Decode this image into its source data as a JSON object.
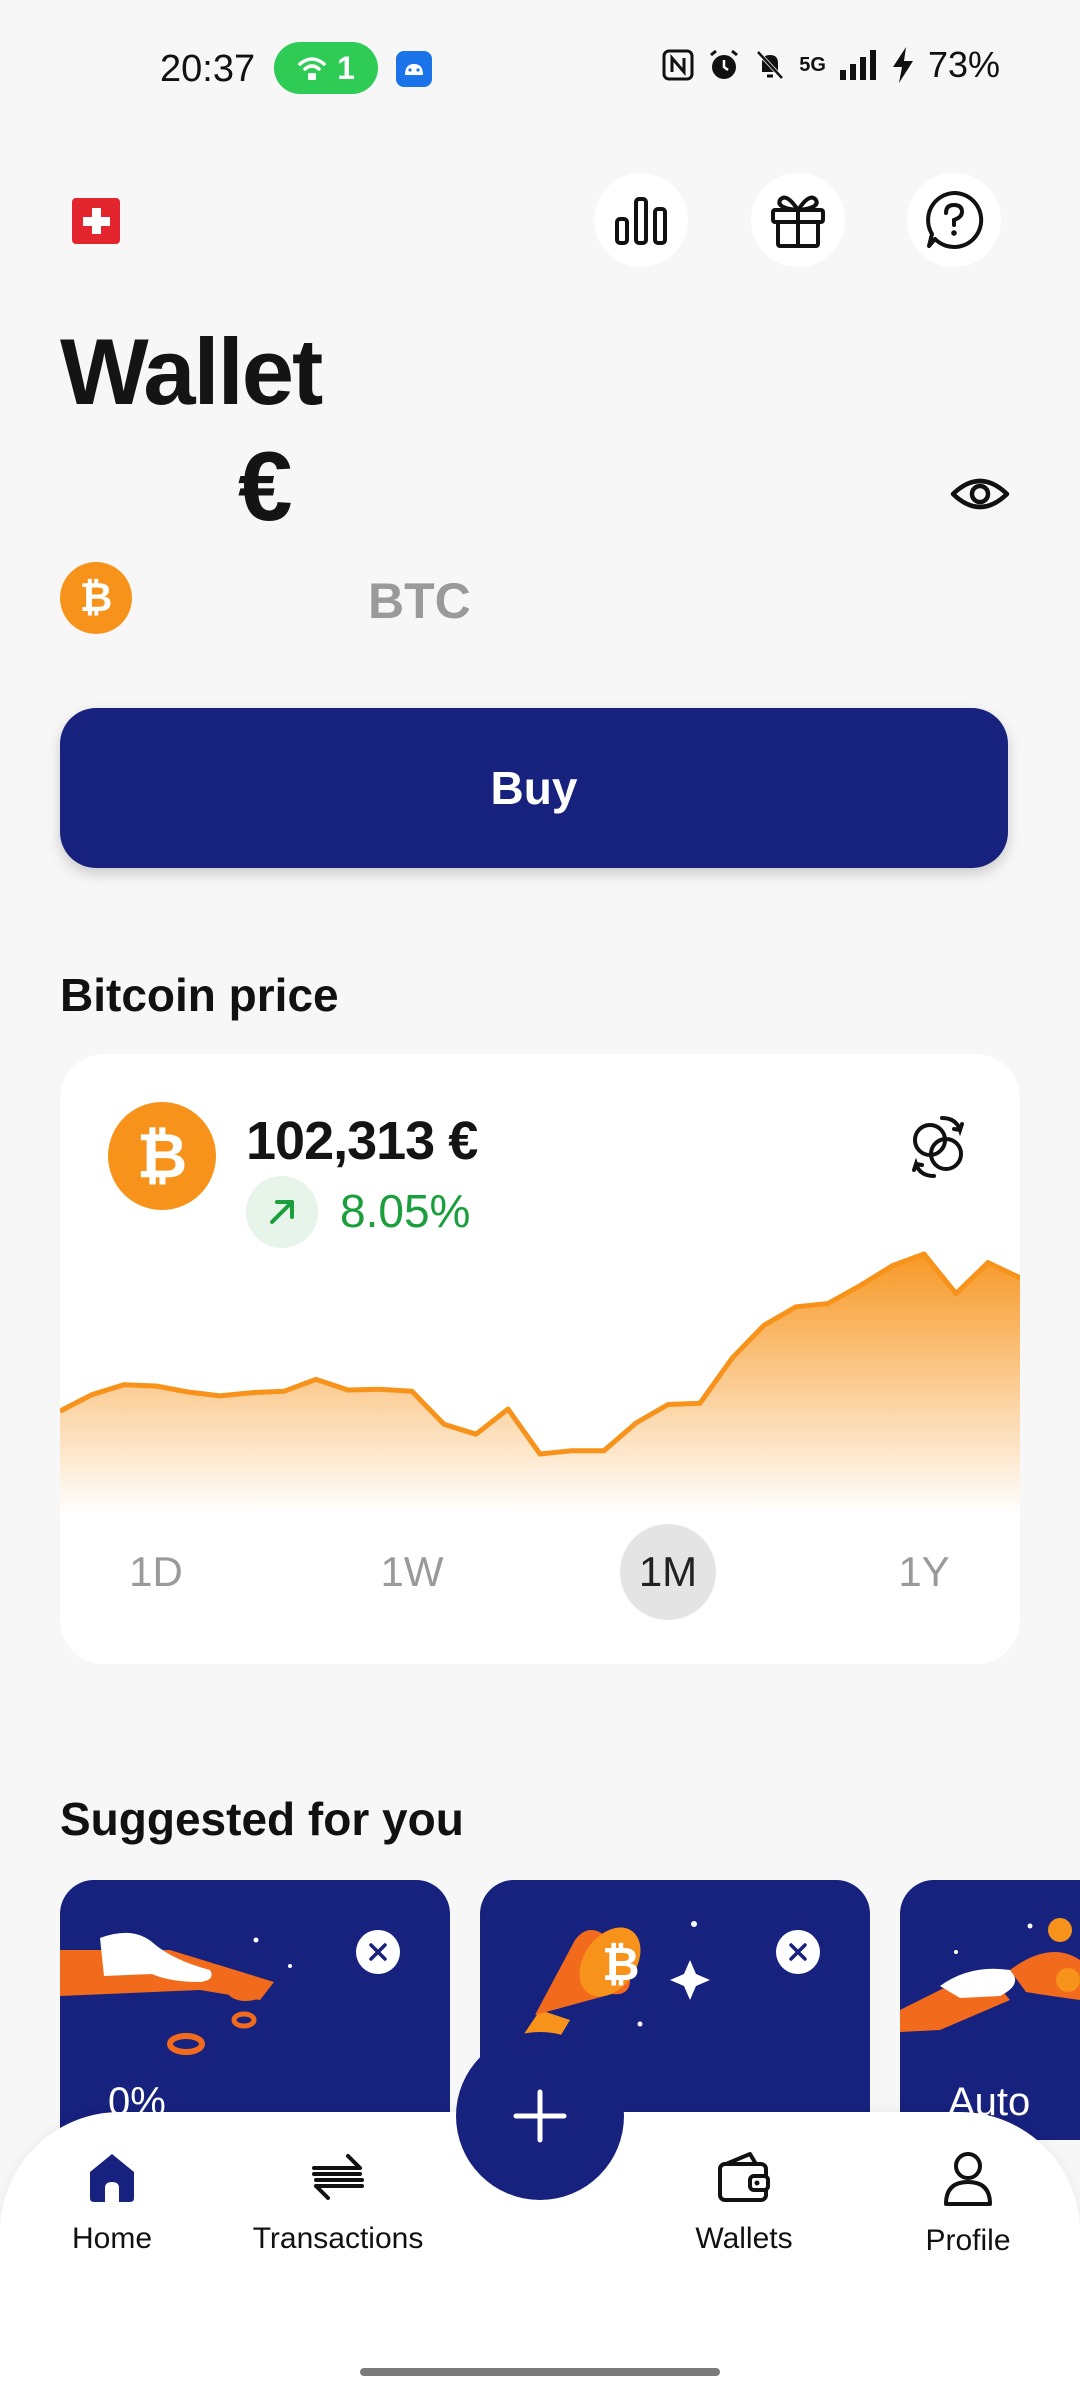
{
  "status_bar": {
    "time": "20:37",
    "hotspot_count": "1",
    "network": "5G",
    "battery": "73%"
  },
  "header": {
    "title": "Wallet",
    "currency_symbol": "€",
    "crypto_code": "BTC"
  },
  "buy_button": {
    "label": "Buy"
  },
  "price_section": {
    "heading": "Bitcoin price",
    "price": "102,313 €",
    "change": "8.05%",
    "ranges": [
      "1D",
      "1W",
      "1M",
      "1Y"
    ],
    "selected_range": "1M"
  },
  "chart_data": {
    "type": "area",
    "series": [
      {
        "values": [
          100.0,
          102.5,
          104.0,
          103.8,
          102.9,
          102.3,
          102.8,
          103.0,
          104.8,
          103.2,
          103.3,
          103.0,
          98.0,
          96.5,
          100.3,
          93.5,
          94.0,
          94.0,
          98.2,
          101.0,
          101.2,
          108.0,
          113.0,
          115.8,
          116.3,
          119.0,
          122.0,
          123.8,
          117.8,
          122.5,
          120.2
        ]
      }
    ]
  },
  "suggested": {
    "heading": "Suggested for you",
    "cards": [
      {
        "text": "0%"
      },
      {
        "text": ""
      },
      {
        "text": "Auto"
      }
    ]
  },
  "bottom_nav": {
    "items": [
      "Home",
      "Transactions",
      "Wallets",
      "Profile"
    ]
  },
  "colors": {
    "brand_navy": "#17217e",
    "bitcoin_orange": "#f7931a",
    "positive_green": "#1a9f3c"
  }
}
